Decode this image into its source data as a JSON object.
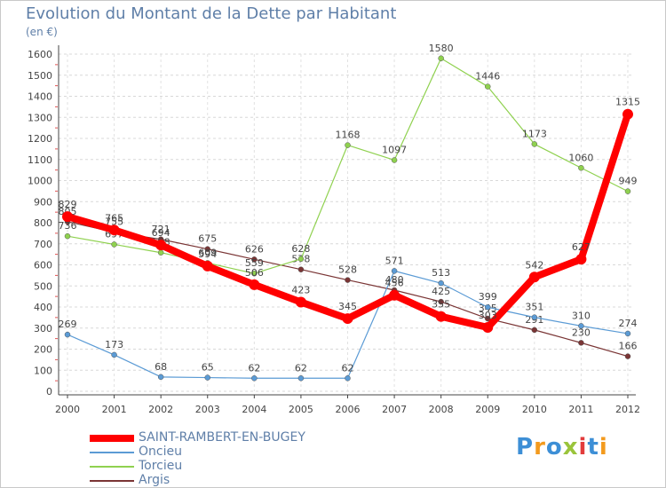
{
  "title": "Evolution du Montant de la Dette par Habitant",
  "unit_label": "(en €)",
  "logo": {
    "text": "Proxiti",
    "colors": [
      "#3d8fd6",
      "#f39a1d",
      "#3d8fd6",
      "#9ac43b",
      "#e23c3c",
      "#3d8fd6",
      "#f39a1d"
    ]
  },
  "chart_data": {
    "type": "line",
    "x": [
      "2000",
      "2001",
      "2002",
      "2003",
      "2004",
      "2005",
      "2006",
      "2007",
      "2008",
      "2009",
      "2010",
      "2011",
      "2012"
    ],
    "ylim": [
      0,
      1600
    ],
    "yticks": [
      0,
      100,
      200,
      300,
      400,
      500,
      600,
      700,
      800,
      900,
      1000,
      1100,
      1200,
      1300,
      1400,
      1500,
      1600
    ],
    "grid": true,
    "legend_position": "bottom-left",
    "series": [
      {
        "name": "SAINT-RAMBERT-EN-BUGEY",
        "color": "#ff0000",
        "values": [
          829,
          765,
          694,
          594,
          506,
          423,
          345,
          456,
          355,
          303,
          542,
          627,
          1315
        ],
        "labels_shown": [
          true,
          true,
          true,
          true,
          true,
          true,
          true,
          true,
          true,
          true,
          true,
          true,
          true
        ]
      },
      {
        "name": "Oncieu",
        "color": "#5b9bd5",
        "values": [
          269,
          173,
          68,
          65,
          62,
          62,
          62,
          571,
          513,
          399,
          351,
          310,
          274
        ],
        "labels_shown": [
          true,
          true,
          true,
          true,
          true,
          true,
          true,
          true,
          true,
          true,
          true,
          true,
          true
        ]
      },
      {
        "name": "Torcieu",
        "color": "#8fd14f",
        "values": [
          736,
          697,
          658,
          609,
          559,
          628,
          1168,
          1097,
          1580,
          1446,
          1173,
          1060,
          949
        ],
        "labels_shown": [
          true,
          true,
          true,
          true,
          true,
          true,
          true,
          true,
          true,
          true,
          true,
          true,
          true
        ]
      },
      {
        "name": "Argis",
        "color": "#7a3535",
        "values": [
          805,
          755,
          721,
          675,
          626,
          578,
          528,
          480,
          425,
          345,
          291,
          230,
          166
        ],
        "labels_shown": [
          true,
          true,
          true,
          true,
          true,
          true,
          true,
          true,
          true,
          true,
          true,
          true,
          true
        ]
      }
    ]
  }
}
